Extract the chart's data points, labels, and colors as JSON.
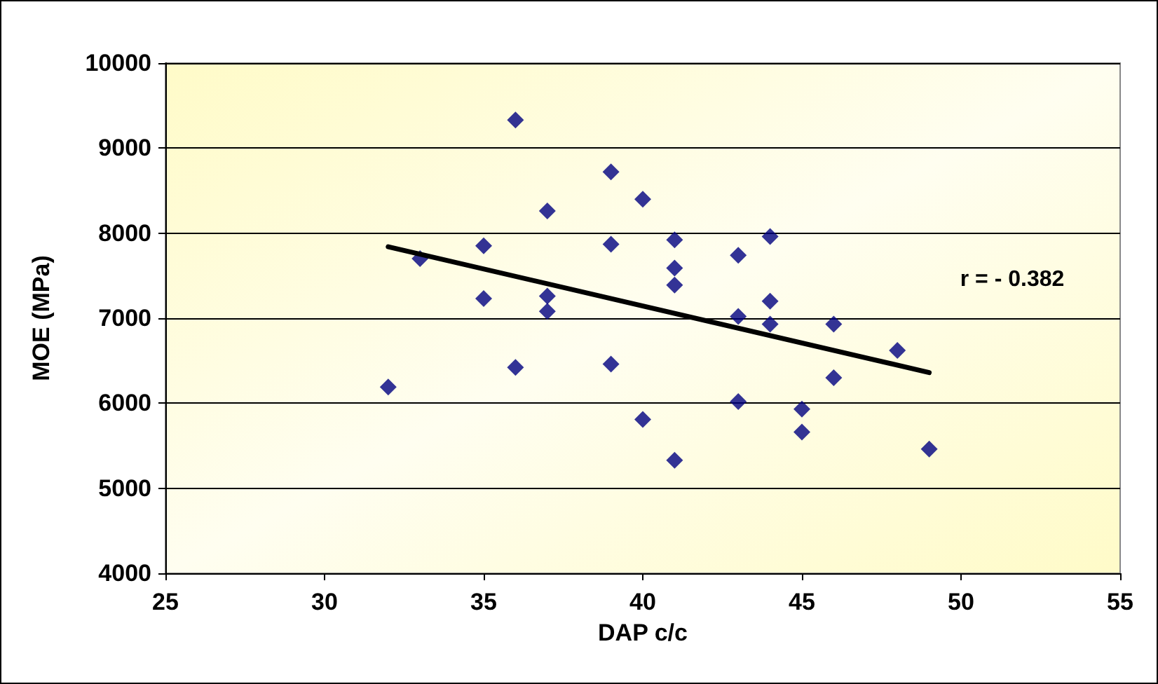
{
  "chart_data": {
    "type": "scatter",
    "xlabel": "DAP c/c",
    "ylabel": "MOE (MPa)",
    "xlim": [
      25,
      55
    ],
    "xticks": [
      25,
      30,
      35,
      40,
      45,
      50,
      55
    ],
    "ylim": [
      4000,
      10000
    ],
    "yticks": [
      4000,
      5000,
      6000,
      7000,
      8000,
      9000,
      10000
    ],
    "grid": "y",
    "annotations": [
      "r = - 0.382"
    ],
    "series": [
      {
        "marker": "diamond",
        "color": "#000080",
        "x": [
          32,
          33,
          35,
          35,
          36,
          36,
          37,
          37,
          37,
          39,
          39,
          39,
          40,
          40,
          41,
          41,
          41,
          41,
          43,
          43,
          43,
          44,
          44,
          44,
          45,
          45,
          46,
          46,
          48,
          49
        ],
        "values": [
          6190,
          7700,
          7850,
          7230,
          9330,
          6420,
          8260,
          7260,
          7080,
          8720,
          7870,
          6460,
          8400,
          5810,
          7920,
          7590,
          7390,
          5330,
          7740,
          7020,
          6020,
          7960,
          7200,
          6930,
          5930,
          5660,
          6930,
          6300,
          6620,
          5460
        ]
      },
      {
        "type": "line",
        "marker": "none",
        "line_style": "solid",
        "color": "#000000",
        "x": [
          32,
          49
        ],
        "values": [
          7840,
          6360
        ]
      }
    ]
  }
}
